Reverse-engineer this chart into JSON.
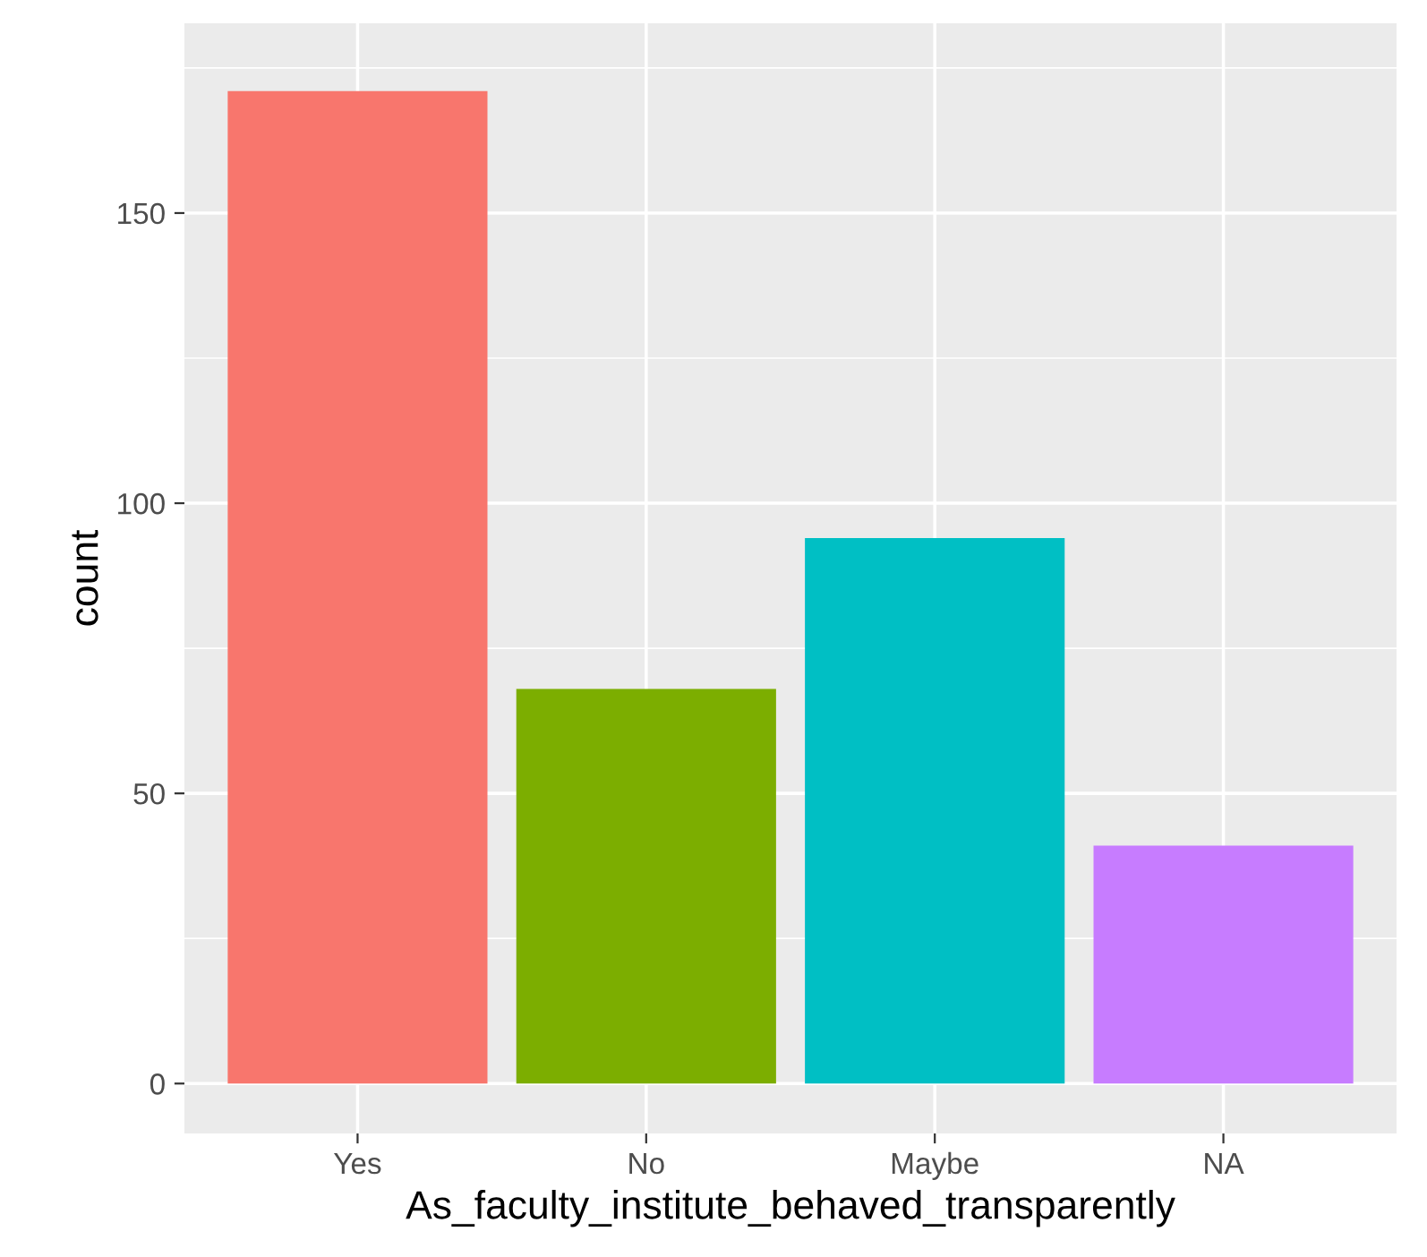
{
  "chart_data": {
    "type": "bar",
    "xlabel": "As_faculty_institute_behaved_transparently",
    "ylabel": "count",
    "categories": [
      "Yes",
      "No",
      "Maybe",
      "NA"
    ],
    "values": [
      171,
      68,
      94,
      41
    ],
    "colors": [
      "#f8766d",
      "#7cae00",
      "#00bfc4",
      "#c77cff"
    ],
    "ylim": [
      -8.6,
      182.7
    ],
    "yticks": [
      0,
      50,
      100,
      150
    ],
    "grid": true,
    "legend": false
  }
}
